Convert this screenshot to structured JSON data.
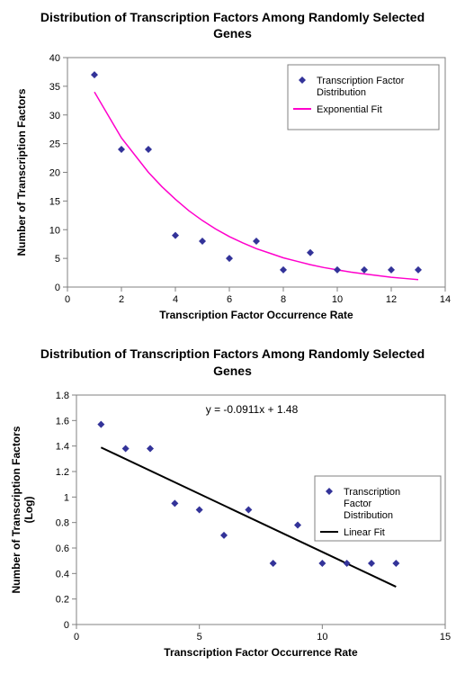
{
  "chart1": {
    "type": "scatter+line",
    "title": "Distribution of Transcription Factors Among Randomly Selected Genes",
    "xlabel": "Transcription Factor Occurrence Rate",
    "ylabel": "Number of Transcription Factors",
    "title_fontsize": 14,
    "label_fontsize": 12,
    "tick_fontsize": 11,
    "xlim": [
      0,
      14
    ],
    "ylim": [
      0,
      40
    ],
    "xticks": [
      0,
      2,
      4,
      6,
      8,
      10,
      12,
      14
    ],
    "yticks": [
      0,
      5,
      10,
      15,
      20,
      25,
      30,
      35,
      40
    ],
    "scatter": {
      "x": [
        1,
        2,
        3,
        4,
        5,
        6,
        7,
        8,
        9,
        10,
        11,
        12,
        13
      ],
      "y": [
        37,
        24,
        24,
        9,
        8,
        5,
        8,
        3,
        6,
        3,
        3,
        3,
        3
      ],
      "color": "#333399",
      "marker": "diamond",
      "markersize": 8
    },
    "fit": {
      "type": "exponential",
      "color": "#ff00cc",
      "width": 1.5,
      "x": [
        1,
        1.5,
        2,
        2.5,
        3,
        3.5,
        4,
        4.5,
        5,
        5.5,
        6,
        6.5,
        7,
        7.5,
        8,
        8.5,
        9,
        9.5,
        10,
        10.5,
        11,
        11.5,
        12,
        12.5,
        13
      ],
      "y": [
        34,
        30,
        26,
        23,
        20,
        17.5,
        15.3,
        13.3,
        11.6,
        10.1,
        8.8,
        7.7,
        6.7,
        5.9,
        5.1,
        4.5,
        3.9,
        3.4,
        3.0,
        2.6,
        2.3,
        2.0,
        1.7,
        1.5,
        1.3
      ]
    },
    "legend": {
      "items": [
        {
          "label": "Transcription Factor Distribution",
          "type": "marker",
          "color": "#333399"
        },
        {
          "label": "Exponential Fit",
          "type": "line",
          "color": "#ff00cc"
        }
      ],
      "position": "upper-right",
      "fontsize": 11
    },
    "background_color": "#ffffff",
    "grid": false,
    "axis_color": "#808080",
    "tick_color": "#808080"
  },
  "chart2": {
    "type": "scatter+line",
    "title": "Distribution of Transcription Factors Among Randomly Selected Genes",
    "xlabel": "Transcription Factor Occurrence Rate",
    "ylabel": "Number of Transcription Factors (Log)",
    "title_fontsize": 14,
    "label_fontsize": 12,
    "tick_fontsize": 11,
    "xlim": [
      0,
      15
    ],
    "ylim": [
      0,
      1.8
    ],
    "xticks": [
      0,
      5,
      10,
      15
    ],
    "yticks": [
      0,
      0.2,
      0.4,
      0.6,
      0.8,
      1,
      1.2,
      1.4,
      1.6,
      1.8
    ],
    "scatter": {
      "x": [
        1,
        2,
        3,
        4,
        5,
        6,
        7,
        8,
        9,
        10,
        11,
        12,
        13
      ],
      "y": [
        1.57,
        1.38,
        1.38,
        0.95,
        0.9,
        0.7,
        0.9,
        0.48,
        0.78,
        0.48,
        0.48,
        0.48,
        0.48
      ],
      "color": "#333399",
      "marker": "diamond",
      "markersize": 8
    },
    "fit": {
      "type": "linear",
      "color": "#000000",
      "width": 2,
      "x": [
        1,
        13
      ],
      "y": [
        1.389,
        0.296
      ],
      "equation": "y = -0.0911x + 1.48"
    },
    "legend": {
      "items": [
        {
          "label": "Transcription Factor Distribution",
          "type": "marker",
          "color": "#333399"
        },
        {
          "label": "Linear Fit",
          "type": "line",
          "color": "#000000"
        }
      ],
      "position": "right",
      "fontsize": 11
    },
    "background_color": "#ffffff",
    "grid": false,
    "axis_color": "#808080",
    "tick_color": "#808080"
  }
}
